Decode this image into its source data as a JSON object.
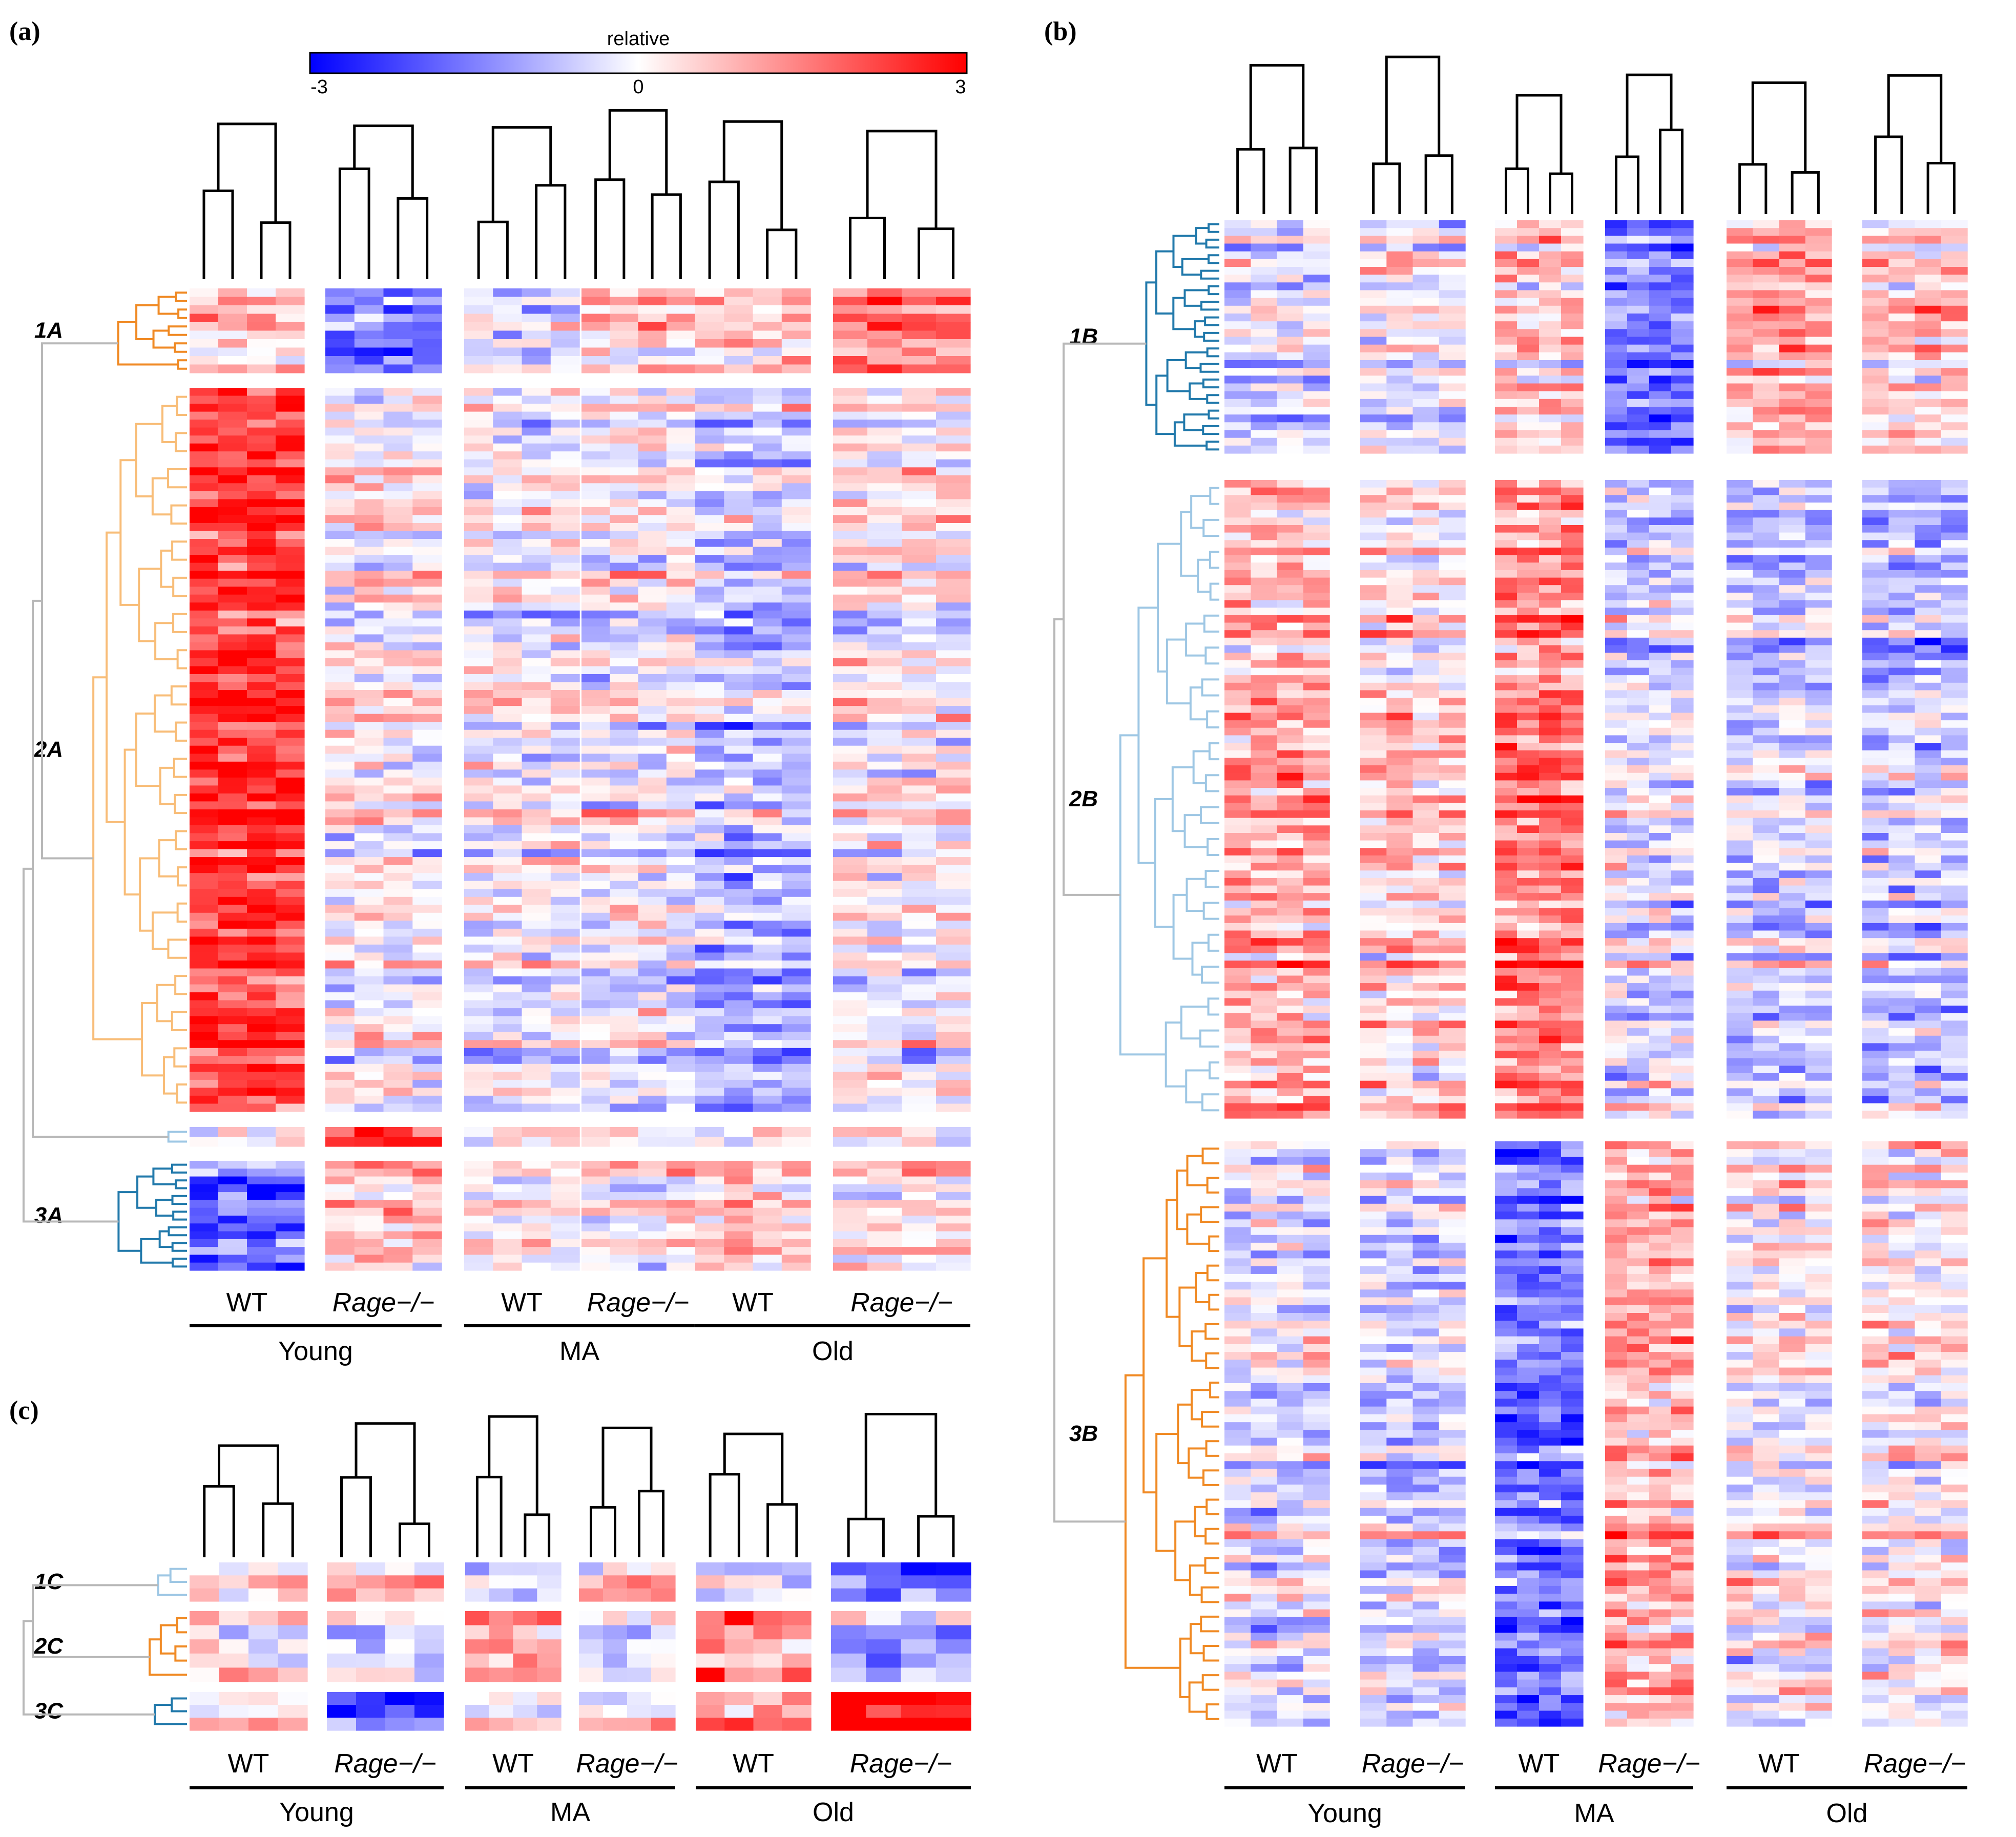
{
  "figure": {
    "panel_labels": [
      "(a)",
      "(b)",
      "(c)"
    ],
    "colorbar": {
      "title": "relative",
      "min_label": "-3",
      "mid_label": "0",
      "max_label": "3",
      "low_color": "#0000ff",
      "mid_color": "#ffffff",
      "high_color": "#ff0000"
    },
    "genotypes": [
      "WT",
      "Rage−/−",
      "WT",
      "Rage−/−",
      "WT",
      "Rage−/−"
    ],
    "age_groups": [
      "Young",
      "MA",
      "Old"
    ]
  },
  "chart_data": [
    {
      "type": "heatmap",
      "panel": "(a)",
      "value_range": [
        -3,
        3
      ],
      "columns_per_group": 4,
      "groups": [
        "Young WT",
        "Young Rage−/−",
        "MA WT",
        "MA Rage−/−",
        "Old WT",
        "Old Rage−/−"
      ],
      "clusters": [
        {
          "label": "1A",
          "rows": 10,
          "color": "#f08a24",
          "group_means": [
            0.1,
            -2.0,
            -0.6,
            0.3,
            0.1,
            1.2
          ]
        },
        {
          "label": "2A",
          "rows": 91,
          "color": "#f8bd78",
          "group_means": [
            2.4,
            0.1,
            0.0,
            0.0,
            -0.7,
            0.1
          ]
        },
        {
          "label": "",
          "rows": 2,
          "color": "#9ec7e4",
          "group_means": [
            -0.2,
            2.0,
            -0.2,
            -0.2,
            -0.3,
            -0.4
          ]
        },
        {
          "label": "3A",
          "rows": 14,
          "color": "#2179ab",
          "group_means": [
            -1.8,
            0.6,
            0.1,
            0.1,
            0.5,
            0.3
          ]
        }
      ]
    },
    {
      "type": "heatmap",
      "panel": "(b)",
      "value_range": [
        -3,
        3
      ],
      "columns_per_group": 4,
      "groups": [
        "Young WT",
        "Young Rage−/−",
        "MA WT",
        "MA Rage−/−",
        "Old WT",
        "Old Rage−/−"
      ],
      "clusters": [
        {
          "label": "1B",
          "rows": 30,
          "color": "#2179ab",
          "group_means": [
            -0.5,
            -0.2,
            0.5,
            -1.6,
            0.8,
            0.5
          ]
        },
        {
          "label": "2B",
          "rows": 85,
          "color": "#9ec7e4",
          "group_means": [
            1.0,
            0.6,
            1.6,
            -0.3,
            -0.5,
            -0.6
          ]
        },
        {
          "label": "3B",
          "rows": 75,
          "color": "#f08a24",
          "group_means": [
            -0.3,
            -0.4,
            -1.6,
            1.1,
            0.1,
            0.2
          ]
        }
      ]
    },
    {
      "type": "heatmap",
      "panel": "(c)",
      "value_range": [
        -3,
        3
      ],
      "columns_per_group": 4,
      "groups": [
        "Young WT",
        "Young Rage−/−",
        "MA WT",
        "MA Rage−/−",
        "Old WT",
        "Old Rage−/−"
      ],
      "clusters": [
        {
          "label": "1C",
          "rows": 3,
          "color": "#9ec7e4",
          "group_means": [
            0.6,
            0.4,
            -0.3,
            0.5,
            -0.4,
            -1.8
          ]
        },
        {
          "label": "2C",
          "rows": 5,
          "color": "#f08a24",
          "group_means": [
            0.3,
            -0.2,
            1.2,
            -0.2,
            1.3,
            -0.9
          ]
        },
        {
          "label": "3C",
          "rows": 3,
          "color": "#2179ab",
          "group_means": [
            0.0,
            -2.6,
            -0.4,
            0.1,
            1.0,
            2.8
          ]
        }
      ]
    }
  ]
}
